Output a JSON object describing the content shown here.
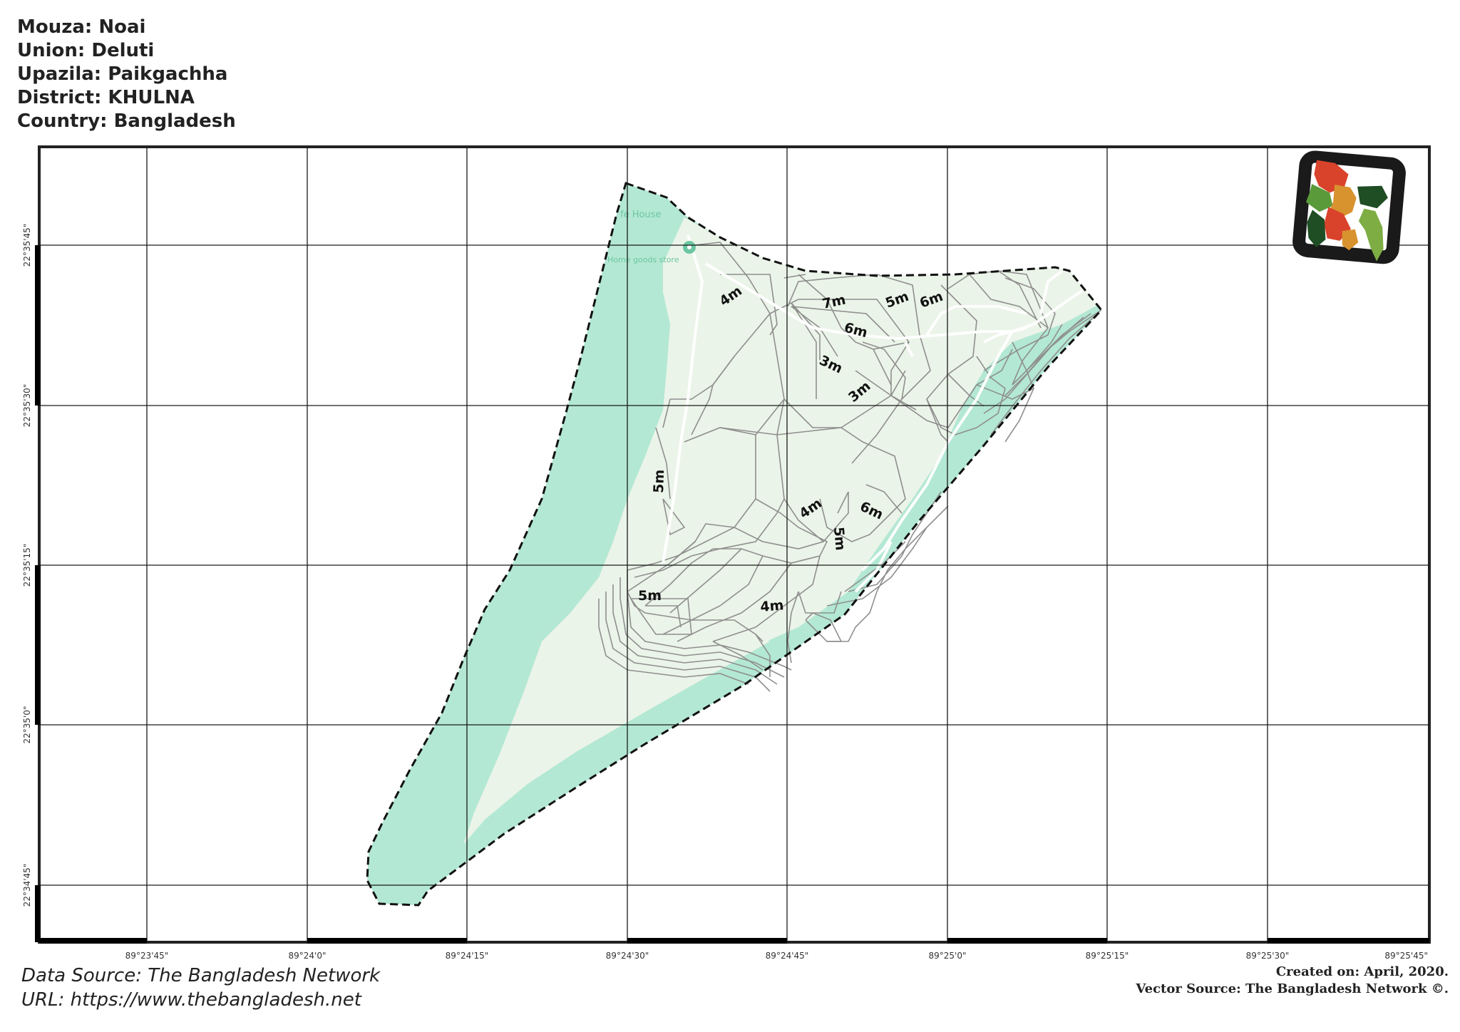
{
  "header": {
    "mouza": "Mouza: Noai",
    "union": "Union: Deluti",
    "upazila": "Upazila: Paikgachha",
    "district": "District: KHULNA",
    "country": "Country: Bangladesh"
  },
  "map": {
    "x_ticks": [
      "89°23'45\"",
      "89°24'0\"",
      "89°24'15\"",
      "89°24'30\"",
      "89°24'45\"",
      "89°25'0\"",
      "89°25'15\"",
      "89°25'30\"",
      "89°25'45\""
    ],
    "y_ticks": [
      "22°35'45\"",
      "22°35'30\"",
      "22°35'15\"",
      "22°35'0\"",
      "22°34'45\""
    ],
    "contour_labels": [
      "4m",
      "7m",
      "5m",
      "6m",
      "6m",
      "3m",
      "3m",
      "5m",
      "4m",
      "5m",
      "6m",
      "5m",
      "4m"
    ],
    "basemap_labels": [
      "fe House",
      "Home goods store"
    ],
    "colors": {
      "water": "#b3e8d4",
      "land": "#ebf4e8",
      "contour": "#8f8f8f",
      "grid": "#1a1a1a",
      "boundary": "#111111"
    }
  },
  "inset": {
    "icon": "bangladesh-divisions-map-icon",
    "colors": [
      "#d9432b",
      "#5a9a3a",
      "#d8922e",
      "#1f4d24",
      "#7dad43"
    ]
  },
  "footer": {
    "data_source": "Data Source: The Bangladesh Network",
    "url": "URL: https://www.thebangladesh.net",
    "created": "Created on: April, 2020.",
    "vector_source": "Vector Source: The Bangladesh Network ©."
  }
}
